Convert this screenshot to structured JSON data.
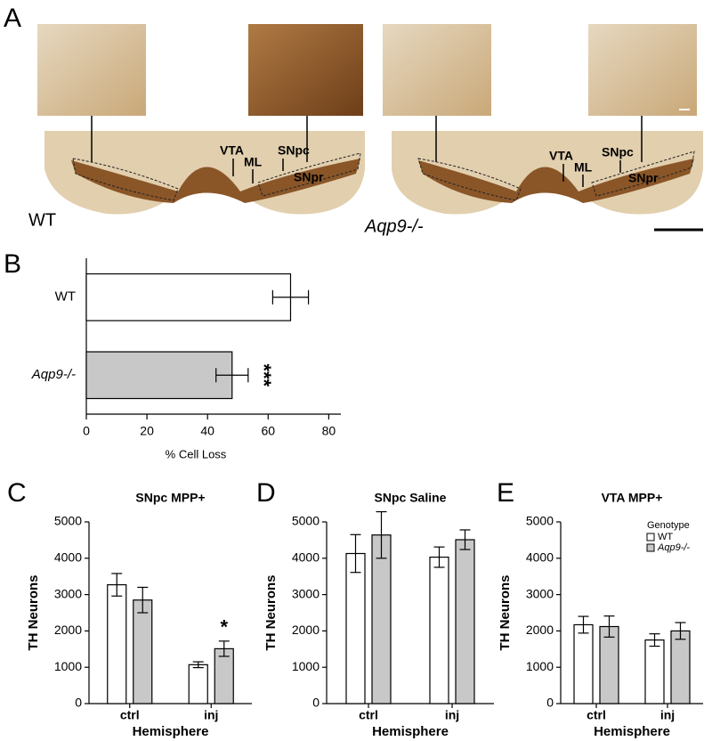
{
  "panel_a": {
    "label": "A",
    "sections": [
      {
        "genotype": "WT",
        "regions": [
          "VTA",
          "ML",
          "SNpc",
          "SNpr"
        ]
      },
      {
        "genotype": "Aqp9-/-",
        "regions": [
          "VTA",
          "ML",
          "SNpc",
          "SNpr"
        ]
      }
    ]
  },
  "chart_data": [
    {
      "panel": "B",
      "type": "hbar",
      "categories": [
        "WT",
        "Aqp9-/-"
      ],
      "values": [
        67.4,
        48.1
      ],
      "errors": [
        5.9,
        5.3
      ],
      "colors": [
        "#ffffff",
        "#c8c8c8"
      ],
      "value_annotations": [
        null,
        "***"
      ],
      "xlabel": "% Cell Loss",
      "xlim": [
        0,
        84
      ],
      "xticks": [
        0,
        20,
        40,
        60,
        80
      ]
    },
    {
      "panel": "C",
      "type": "bar",
      "title": "SNpc MPP+",
      "categories": [
        "ctrl",
        "inj"
      ],
      "xlabel": "Hemisphere",
      "ylabel": "TH Neurons",
      "series": [
        {
          "color": "#ffffff",
          "values": [
            3270,
            1070
          ],
          "errors": [
            310,
            80
          ]
        },
        {
          "color": "#c8c8c8",
          "values": [
            2850,
            1510
          ],
          "errors": [
            350,
            210
          ],
          "value_annotations": [
            null,
            "*"
          ]
        }
      ],
      "ylim": [
        0,
        5000
      ],
      "yticks": [
        0,
        1000,
        2000,
        3000,
        4000,
        5000
      ]
    },
    {
      "panel": "D",
      "type": "bar",
      "title": "SNpc Saline",
      "categories": [
        "ctrl",
        "inj"
      ],
      "xlabel": "Hemisphere",
      "ylabel": "TH Neurons",
      "series": [
        {
          "color": "#ffffff",
          "values": [
            4130,
            4030
          ],
          "errors": [
            520,
            280
          ]
        },
        {
          "color": "#c8c8c8",
          "values": [
            4640,
            4510
          ],
          "errors": [
            640,
            270
          ]
        }
      ],
      "ylim": [
        0,
        5000
      ],
      "yticks": [
        0,
        1000,
        2000,
        3000,
        4000,
        5000
      ]
    },
    {
      "panel": "E",
      "type": "bar",
      "title": "VTA MPP+",
      "categories": [
        "ctrl",
        "inj"
      ],
      "xlabel": "Hemisphere",
      "ylabel": "TH Neurons",
      "legend_title": "Genotype",
      "legend": "top-right",
      "series": [
        {
          "name": "WT",
          "color": "#ffffff",
          "values": [
            2170,
            1750
          ],
          "errors": [
            230,
            170
          ]
        },
        {
          "name": "Aqp9-/-",
          "color": "#c8c8c8",
          "values": [
            2120,
            2000
          ],
          "errors": [
            290,
            230
          ]
        }
      ],
      "ylim": [
        0,
        5000
      ],
      "yticks": [
        0,
        1000,
        2000,
        3000,
        4000,
        5000
      ]
    }
  ]
}
